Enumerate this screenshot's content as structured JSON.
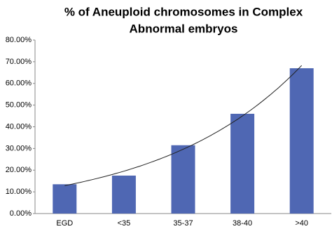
{
  "chart_data": {
    "type": "bar",
    "title": [
      "% of Aneuploid chromosomes in Complex",
      "Abnormal embryos"
    ],
    "categories": [
      "EGD",
      "<35",
      "35-37",
      "38-40",
      ">40"
    ],
    "values": [
      13.5,
      17.5,
      31.5,
      46,
      67
    ],
    "color": "#4f67b3",
    "ylim": [
      0,
      80
    ],
    "yticks": [
      {
        "value": 0,
        "label": "0.00%"
      },
      {
        "value": 10,
        "label": "10.00%"
      },
      {
        "value": 20,
        "label": "20.00%"
      },
      {
        "value": 30,
        "label": "30.00%"
      },
      {
        "value": 40,
        "label": "40.00%"
      },
      {
        "value": 50,
        "label": "50.00%"
      },
      {
        "value": 60,
        "label": "60.00%"
      },
      {
        "value": 70,
        "label": "70.00%"
      },
      {
        "value": 80,
        "label": "80.00%"
      }
    ],
    "grid": false,
    "trendline": {
      "kind": "exponential",
      "color": "#222222"
    }
  }
}
